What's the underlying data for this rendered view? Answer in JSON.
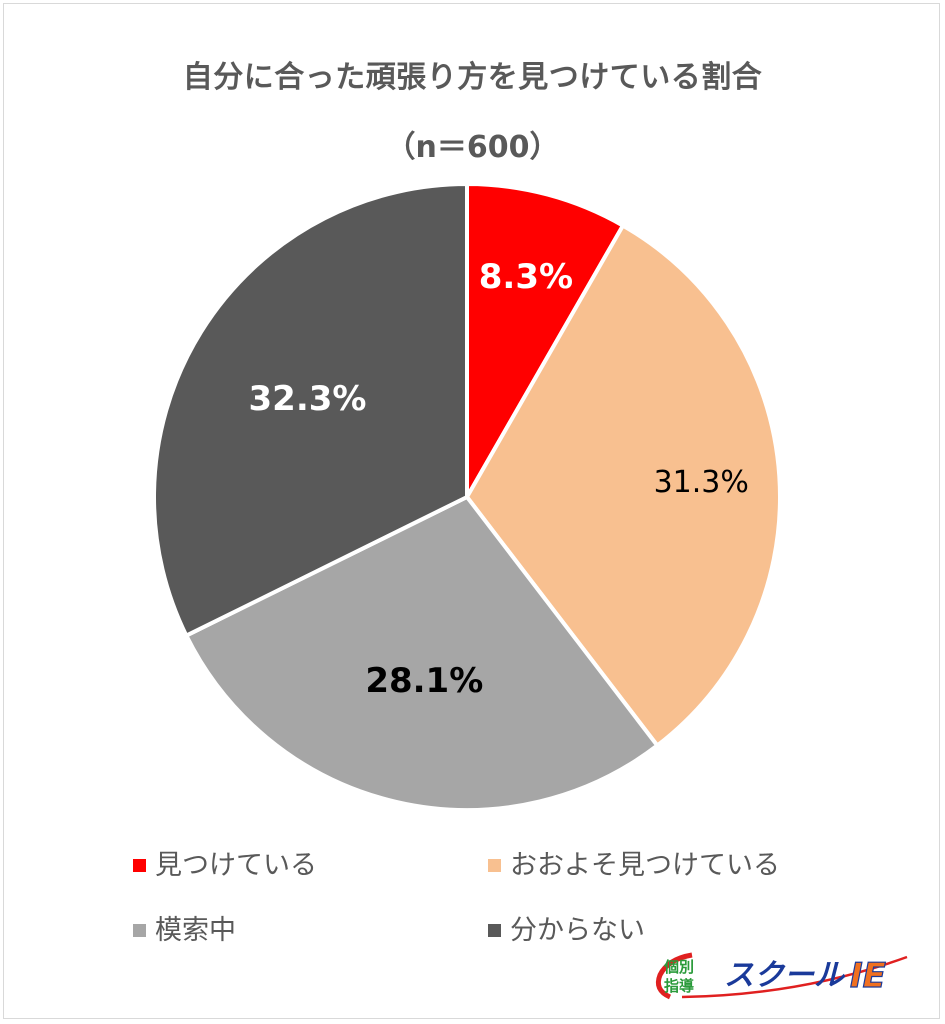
{
  "chart_data": {
    "type": "pie",
    "title": "自分に合った頑張り方を見つけている割合",
    "subtitle": "（n＝600）",
    "categories": [
      "見つけている",
      "おおよそ見つけている",
      "模索中",
      "分からない"
    ],
    "values": [
      8.3,
      31.3,
      28.1,
      32.3
    ],
    "labels": [
      "8.3%",
      "31.3%",
      "28.1%",
      "32.3%"
    ],
    "colors": [
      "#ff0000",
      "#f8c090",
      "#a6a6a6",
      "#595959"
    ],
    "start_angle": "12 o'clock, clockwise",
    "legend_position": "bottom"
  },
  "header": {
    "title": "自分に合った頑張り方を見つけている割合",
    "subtitle": "（n＝600）"
  },
  "legend": [
    {
      "label": "見つけている",
      "color": "#ff0000"
    },
    {
      "label": "おおよそ見つけている",
      "color": "#f8c090"
    },
    {
      "label": "模索中",
      "color": "#a6a6a6"
    },
    {
      "label": "分からない",
      "color": "#595959"
    }
  ],
  "logo": {
    "badge_line1": "個別",
    "badge_line2": "指導",
    "brand_text": "スクール",
    "brand_suffix": "IE"
  }
}
